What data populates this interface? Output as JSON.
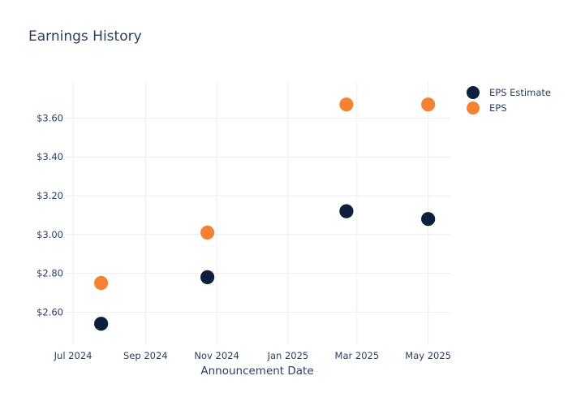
{
  "chart_data": {
    "type": "scatter",
    "title": "Earnings History",
    "xlabel": "Announcement Date",
    "ylabel": "",
    "x_ticks": [
      {
        "date": "2024-07-01",
        "label": "Jul 2024"
      },
      {
        "date": "2024-09-01",
        "label": "Sep 2024"
      },
      {
        "date": "2024-11-01",
        "label": "Nov 2024"
      },
      {
        "date": "2025-01-01",
        "label": "Jan 2025"
      },
      {
        "date": "2025-03-01",
        "label": "Mar 2025"
      },
      {
        "date": "2025-05-01",
        "label": "May 2025"
      }
    ],
    "y_ticks": [
      {
        "value": 2.6,
        "label": "$2.60"
      },
      {
        "value": 2.8,
        "label": "$2.80"
      },
      {
        "value": 3.0,
        "label": "$3.00"
      },
      {
        "value": 3.2,
        "label": "$3.20"
      },
      {
        "value": 3.4,
        "label": "$3.40"
      },
      {
        "value": 3.6,
        "label": "$3.60"
      }
    ],
    "xlim": [
      "2024-06-24",
      "2025-05-20"
    ],
    "ylim": [
      2.43,
      3.79
    ],
    "grid": true,
    "legend_position": "top-right",
    "series": [
      {
        "name": "EPS Estimate",
        "color": "#0c1f3f",
        "points": [
          {
            "x": "2024-07-25",
            "y": 2.54
          },
          {
            "x": "2024-10-24",
            "y": 2.78
          },
          {
            "x": "2025-02-20",
            "y": 3.12
          },
          {
            "x": "2025-05-01",
            "y": 3.08
          }
        ]
      },
      {
        "name": "EPS",
        "color": "#f58233",
        "points": [
          {
            "x": "2024-07-25",
            "y": 2.75
          },
          {
            "x": "2024-10-24",
            "y": 3.01
          },
          {
            "x": "2025-02-20",
            "y": 3.67
          },
          {
            "x": "2025-05-01",
            "y": 3.67
          }
        ]
      }
    ]
  }
}
